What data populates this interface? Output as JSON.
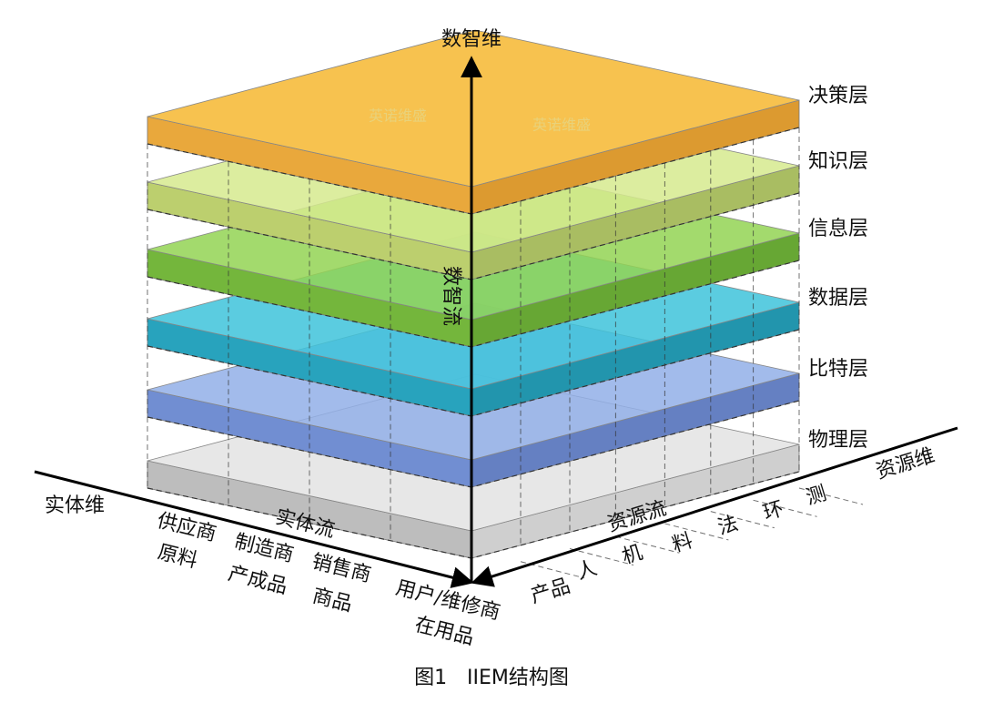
{
  "axes": {
    "vertical": "数智维",
    "entity": "实体维",
    "resource": "资源维"
  },
  "layers": [
    "决策层",
    "知识层",
    "信息层",
    "数据层",
    "比特层",
    "物理层"
  ],
  "flows": {
    "digital": "数智流",
    "entity": "实体流",
    "resource": "资源流"
  },
  "entity_items": [
    {
      "role": "供应商",
      "item": "原料"
    },
    {
      "role": "制造商",
      "item": "产成品"
    },
    {
      "role": "销售商",
      "item": "商品"
    },
    {
      "role": "用户/维修商",
      "item": "在用品"
    }
  ],
  "resource_items": [
    "产品",
    "人",
    "机",
    "料",
    "法",
    "环",
    "测"
  ],
  "watermark": [
    "英诺维盛",
    "英诺维盛"
  ],
  "caption": "图1　IIEM结构图"
}
